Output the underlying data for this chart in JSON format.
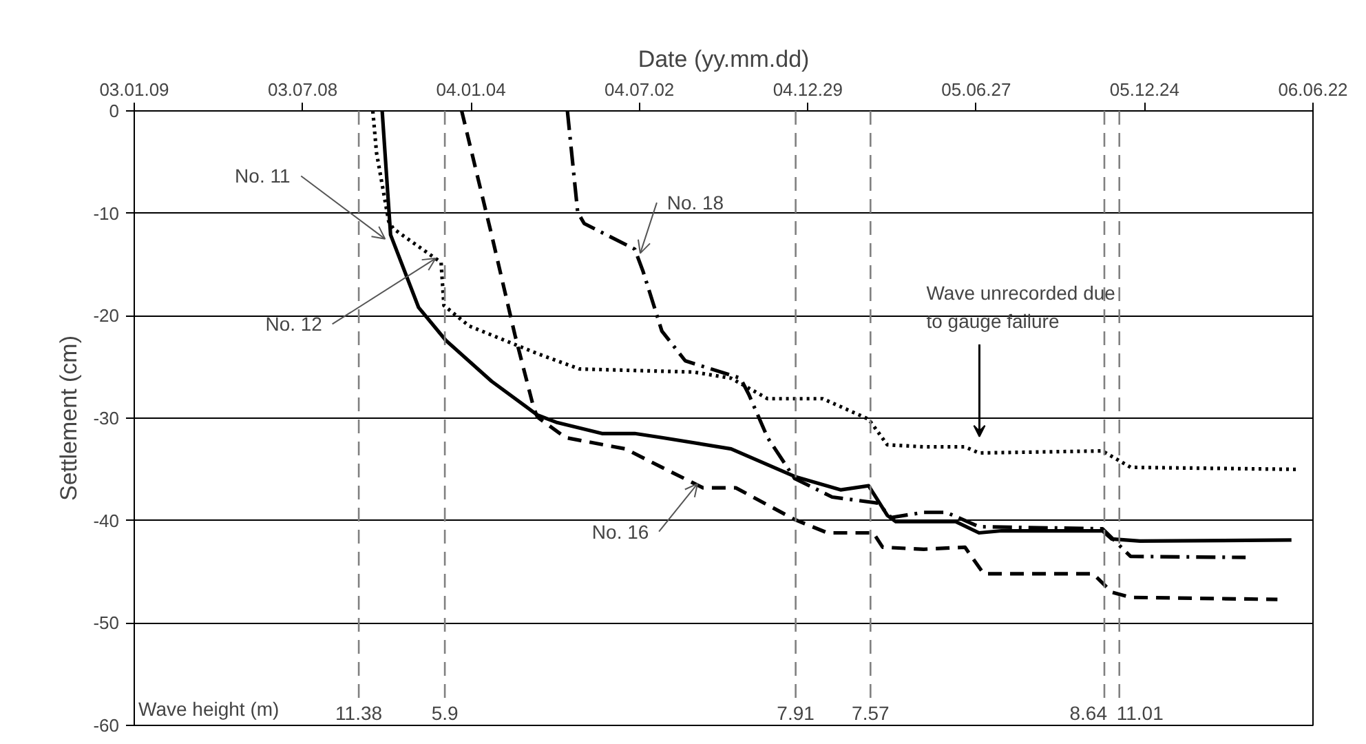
{
  "chart_data": {
    "type": "line",
    "xlabel": "Date (yy.mm.dd)",
    "ylabel": "Settlement (cm)",
    "xlim": [
      "2003-01-09",
      "2006-06-22"
    ],
    "ylim": [
      -60,
      0
    ],
    "xticks": [
      {
        "value": "2003-01-09",
        "label": "03.01.09"
      },
      {
        "value": "2003-07-08",
        "label": "03.07.08"
      },
      {
        "value": "2004-01-04",
        "label": "04.01.04"
      },
      {
        "value": "2004-07-02",
        "label": "04.07.02"
      },
      {
        "value": "2004-12-29",
        "label": "04.12.29"
      },
      {
        "value": "2005-06-27",
        "label": "05.06.27"
      },
      {
        "value": "2005-12-24",
        "label": "05.12.24"
      },
      {
        "value": "2006-06-22",
        "label": "06.06.22"
      }
    ],
    "yticks": [
      0,
      -10,
      -20,
      -30,
      -40,
      -50,
      -60
    ],
    "grid": "y",
    "marker": "none",
    "series": [
      {
        "name": "No. 11",
        "color": "#000000",
        "line_style": "solid",
        "x": [
          "2003-10-01",
          "2003-10-10",
          "2003-11-09",
          "2003-12-08",
          "2004-01-26",
          "2004-03-15",
          "2004-04-04",
          "2004-05-23",
          "2004-06-27",
          "2004-07-26",
          "2004-10-08",
          "2004-12-15",
          "2005-02-02",
          "2005-03-04",
          "2005-03-24",
          "2005-04-02",
          "2005-06-05",
          "2005-06-30",
          "2005-07-24",
          "2005-11-09",
          "2005-11-19",
          "2005-12-19",
          "2006-05-30"
        ],
        "values": [
          0,
          -12.1,
          -19.2,
          -22.4,
          -26.4,
          -29.7,
          -30.4,
          -31.5,
          -31.5,
          -31.9,
          -33.0,
          -35.7,
          -37.0,
          -36.6,
          -39.5,
          -40.1,
          -40.1,
          -41.2,
          -41.0,
          -41.0,
          -41.8,
          -42.0,
          -41.9
        ]
      },
      {
        "name": "No. 12",
        "color": "#000000",
        "line_style": "dotted",
        "x": [
          "2003-09-21",
          "2003-09-25",
          "2003-10-08",
          "2003-10-13",
          "2003-12-03",
          "2003-12-06",
          "2004-01-02",
          "2004-03-15",
          "2004-04-29",
          "2004-08-29",
          "2004-10-08",
          "2004-11-16",
          "2005-01-14",
          "2005-03-04",
          "2005-03-24",
          "2005-05-02",
          "2005-06-15",
          "2005-06-30",
          "2005-11-09",
          "2005-12-09",
          "2006-06-04"
        ],
        "values": [
          0,
          -4.1,
          -10.8,
          -11.5,
          -14.8,
          -19.0,
          -21.0,
          -23.7,
          -25.2,
          -25.5,
          -26.1,
          -28.1,
          -28.1,
          -30.1,
          -32.6,
          -32.8,
          -32.8,
          -33.4,
          -33.2,
          -34.8,
          -35.0
        ]
      },
      {
        "name": "No. 16",
        "color": "#000000",
        "line_style": "dashed",
        "x": [
          "2003-12-25",
          "2004-01-26",
          "2004-02-20",
          "2004-03-11",
          "2004-03-15",
          "2004-04-14",
          "2004-06-17",
          "2004-07-26",
          "2004-09-08",
          "2004-10-13",
          "2004-12-15",
          "2005-01-19",
          "2005-03-09",
          "2005-03-19",
          "2005-05-02",
          "2005-06-15",
          "2005-07-05",
          "2005-10-30",
          "2005-11-19",
          "2005-12-09",
          "2006-05-15"
        ],
        "values": [
          0,
          -12.1,
          -21.9,
          -29.0,
          -29.9,
          -31.9,
          -33.0,
          -34.8,
          -36.8,
          -36.8,
          -39.9,
          -41.2,
          -41.2,
          -42.6,
          -42.8,
          -42.6,
          -45.2,
          -45.2,
          -47.0,
          -47.5,
          -47.7
        ]
      },
      {
        "name": "No. 18",
        "color": "#000000",
        "line_style": "dashdot",
        "x": [
          "2004-04-16",
          "2004-04-27",
          "2004-05-04",
          "2004-06-27",
          "2004-07-06",
          "2004-07-26",
          "2004-08-20",
          "2004-10-18",
          "2004-10-27",
          "2004-11-16",
          "2004-12-15",
          "2005-01-24",
          "2005-03-14",
          "2005-03-28",
          "2005-05-02",
          "2005-05-26",
          "2005-06-30",
          "2005-11-09",
          "2005-11-19",
          "2005-12-09",
          "2006-04-11"
        ],
        "values": [
          0,
          -9.9,
          -11.0,
          -13.5,
          -15.7,
          -21.5,
          -24.4,
          -26.1,
          -27.7,
          -31.9,
          -35.9,
          -37.7,
          -38.3,
          -39.7,
          -39.2,
          -39.2,
          -40.6,
          -40.8,
          -41.7,
          -43.5,
          -43.6
        ]
      }
    ],
    "ref_lines": [
      {
        "axis": "x",
        "value": "2003-09-06",
        "label": "11.38",
        "color": "#808080",
        "line_style": "dashed"
      },
      {
        "axis": "x",
        "value": "2003-12-07",
        "label": "5.9",
        "color": "#808080",
        "line_style": "dashed"
      },
      {
        "axis": "x",
        "value": "2004-12-16",
        "label": "7.91",
        "color": "#808080",
        "line_style": "dashed"
      },
      {
        "axis": "x",
        "value": "2005-03-06",
        "label": "7.57",
        "color": "#808080",
        "line_style": "dashed"
      },
      {
        "axis": "x",
        "value": "2005-11-11",
        "label": "8.64",
        "color": "#808080",
        "line_style": "dashed"
      },
      {
        "axis": "x",
        "value": "2005-11-27",
        "label": "11.01",
        "color": "#808080",
        "line_style": "dashed"
      }
    ],
    "annotations": [
      "Wave height (m)",
      "Wave unrecorded due\nto gauge failure"
    ]
  }
}
